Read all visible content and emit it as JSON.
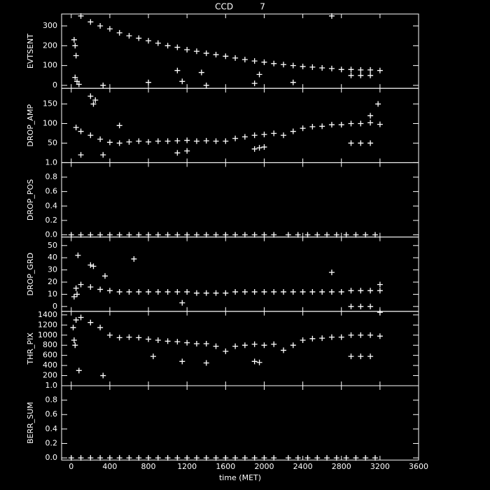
{
  "chart_data": [
    {
      "type": "scatter",
      "title": "CCD          7",
      "y_label": "EVTSENT",
      "color": "#ffffff",
      "xlim": [
        -100,
        3600
      ],
      "ylim": [
        -15,
        360
      ],
      "xticks": [
        0,
        400,
        800,
        1200,
        1600,
        2000,
        2400,
        2800,
        3200,
        3600
      ],
      "yticks": [
        0,
        100,
        200,
        300
      ],
      "x": [
        100,
        200,
        300,
        400,
        500,
        600,
        700,
        800,
        900,
        1000,
        1100,
        1200,
        1300,
        1400,
        1500,
        1600,
        1700,
        1800,
        1900,
        2000,
        2100,
        2200,
        2300,
        2400,
        2500,
        2600,
        2700,
        2800,
        2900,
        3000,
        3100,
        3200,
        30,
        40,
        50,
        40,
        60,
        80,
        330,
        800,
        1100,
        1150,
        1350,
        1400,
        1900,
        1950,
        2300,
        2700,
        2900,
        3000,
        3100
      ],
      "values": [
        350,
        320,
        300,
        285,
        265,
        250,
        238,
        225,
        213,
        200,
        192,
        180,
        172,
        162,
        155,
        147,
        138,
        130,
        123,
        117,
        110,
        105,
        100,
        95,
        92,
        88,
        85,
        80,
        80,
        78,
        78,
        75,
        230,
        200,
        150,
        40,
        20,
        5,
        0,
        15,
        75,
        20,
        65,
        0,
        10,
        55,
        15,
        350,
        50,
        50,
        50
      ]
    },
    {
      "type": "scatter",
      "y_label": "DROP_AMP",
      "color": "#ffffff",
      "xlim": [
        -100,
        3600
      ],
      "ylim": [
        0,
        190
      ],
      "xticks": [
        0,
        400,
        800,
        1200,
        1600,
        2000,
        2400,
        2800,
        3200,
        3600
      ],
      "yticks": [
        50,
        100,
        150
      ],
      "x": [
        50,
        100,
        200,
        300,
        400,
        500,
        600,
        700,
        800,
        900,
        1000,
        1100,
        1200,
        1300,
        1400,
        1500,
        1600,
        1700,
        1800,
        1900,
        2000,
        2100,
        2200,
        2300,
        2400,
        2500,
        2600,
        2700,
        2800,
        2900,
        3000,
        3100,
        3200,
        200,
        230,
        250,
        100,
        330,
        500,
        1100,
        1200,
        1900,
        1950,
        2000,
        2900,
        3000,
        3100,
        3180,
        3100
      ],
      "values": [
        90,
        80,
        70,
        60,
        52,
        50,
        53,
        55,
        53,
        55,
        55,
        56,
        57,
        55,
        56,
        55,
        55,
        62,
        66,
        70,
        72,
        75,
        70,
        80,
        88,
        92,
        93,
        97,
        97,
        100,
        100,
        102,
        98,
        170,
        150,
        160,
        20,
        20,
        95,
        25,
        30,
        35,
        38,
        40,
        50,
        50,
        50,
        150,
        120
      ]
    },
    {
      "type": "scatter",
      "y_label": "DROP_POS",
      "color": "#ffffff",
      "xlim": [
        -100,
        3600
      ],
      "ylim": [
        -0.03,
        1.0
      ],
      "xticks": [
        0,
        400,
        800,
        1200,
        1600,
        2000,
        2400,
        2800,
        3200,
        3600
      ],
      "yticks": [
        {
          "value": 0,
          "label": "0.0"
        },
        {
          "value": 0.2,
          "label": "0.2"
        },
        {
          "value": 0.4,
          "label": "0.4"
        },
        {
          "value": 0.6,
          "label": "0.6"
        },
        {
          "value": 0.8,
          "label": "0.8"
        },
        {
          "value": 1,
          "label": "1.0"
        }
      ],
      "x": [
        0,
        100,
        200,
        300,
        400,
        500,
        600,
        700,
        800,
        900,
        1000,
        1100,
        1200,
        1300,
        1400,
        1500,
        1600,
        1700,
        1800,
        1900,
        2000,
        2100,
        2250,
        2350,
        2450,
        2550,
        2650,
        2750,
        2850,
        2950,
        3050,
        3150
      ],
      "values": [
        0,
        0,
        0,
        0,
        0,
        0,
        0,
        0,
        0,
        0,
        0,
        0,
        0,
        0,
        0,
        0,
        0,
        0,
        0,
        0,
        0,
        0,
        0,
        0,
        0,
        0,
        0,
        0,
        0,
        0,
        0,
        0
      ]
    },
    {
      "type": "scatter",
      "y_label": "DROP_GRD",
      "color": "#ffffff",
      "xlim": [
        -100,
        3600
      ],
      "ylim": [
        -4,
        57
      ],
      "xticks": [
        0,
        400,
        800,
        1200,
        1600,
        2000,
        2400,
        2800,
        3200,
        3600
      ],
      "yticks": [
        0,
        10,
        20,
        30,
        40,
        50
      ],
      "x": [
        50,
        100,
        200,
        300,
        400,
        500,
        600,
        700,
        800,
        900,
        1000,
        1100,
        1200,
        1300,
        1400,
        1500,
        1600,
        1700,
        1800,
        1900,
        2000,
        2100,
        2200,
        2300,
        2400,
        2500,
        2600,
        2700,
        2800,
        2900,
        3000,
        3100,
        3200,
        70,
        200,
        230,
        350,
        650,
        1150,
        2700,
        2900,
        3000,
        3100,
        3200,
        30,
        60
      ],
      "values": [
        15,
        18,
        16,
        14,
        13,
        12,
        12,
        12,
        12,
        12,
        12,
        12,
        12,
        11,
        11,
        11,
        11,
        12,
        12,
        12,
        12,
        12,
        12,
        12,
        12,
        12,
        12,
        12,
        12,
        13,
        13,
        13,
        13,
        42,
        34,
        33,
        25,
        39,
        3,
        28,
        0,
        0,
        0,
        18,
        8,
        10
      ]
    },
    {
      "type": "scatter",
      "y_label": "THR_PIX",
      "color": "#ffffff",
      "xlim": [
        -100,
        3600
      ],
      "ylim": [
        0,
        1470
      ],
      "xticks": [
        0,
        400,
        800,
        1200,
        1600,
        2000,
        2400,
        2800,
        3200,
        3600
      ],
      "yticks": [
        200,
        400,
        600,
        800,
        1000,
        1200,
        1400
      ],
      "x": [
        50,
        100,
        200,
        300,
        400,
        500,
        600,
        700,
        800,
        900,
        1000,
        1100,
        1200,
        1300,
        1400,
        1500,
        1600,
        1700,
        1800,
        1900,
        2000,
        2100,
        2200,
        2300,
        2400,
        2500,
        2600,
        2700,
        2800,
        2900,
        3000,
        3100,
        3200,
        20,
        30,
        40,
        80,
        330,
        850,
        1150,
        1400,
        1900,
        1950,
        2900,
        3000,
        3100,
        3200
      ],
      "values": [
        1300,
        1350,
        1250,
        1150,
        1000,
        950,
        960,
        950,
        920,
        900,
        880,
        870,
        850,
        830,
        830,
        780,
        680,
        780,
        800,
        820,
        800,
        820,
        700,
        800,
        900,
        930,
        940,
        960,
        960,
        1000,
        1000,
        1000,
        980,
        1150,
        900,
        800,
        300,
        200,
        580,
        480,
        450,
        480,
        460,
        580,
        580,
        580,
        1450
      ]
    },
    {
      "type": "scatter",
      "y_label": "BERR_SUM",
      "x_label": "time (MET)",
      "color": "#ffffff",
      "xlim": [
        -100,
        3600
      ],
      "ylim": [
        -0.03,
        1.0
      ],
      "xticks": [
        0,
        400,
        800,
        1200,
        1600,
        2000,
        2400,
        2800,
        3200,
        3600
      ],
      "yticks": [
        {
          "value": 0,
          "label": "0.0"
        },
        {
          "value": 0.2,
          "label": "0.2"
        },
        {
          "value": 0.4,
          "label": "0.4"
        },
        {
          "value": 0.6,
          "label": "0.6"
        },
        {
          "value": 0.8,
          "label": "0.8"
        },
        {
          "value": 1,
          "label": "1.0"
        }
      ],
      "x": [
        0,
        100,
        200,
        300,
        400,
        500,
        600,
        700,
        800,
        900,
        1000,
        1100,
        1200,
        1300,
        1400,
        1500,
        1600,
        1700,
        1800,
        1900,
        2000,
        2100,
        2250,
        2350,
        2450,
        2550,
        2650,
        2750,
        2850,
        2950,
        3050,
        3150
      ],
      "values": [
        0,
        0,
        0,
        0,
        0,
        0,
        0,
        0,
        0,
        0,
        0,
        0,
        0,
        0,
        0,
        0,
        0,
        0,
        0,
        0,
        0,
        0,
        0,
        0,
        0,
        0,
        0,
        0,
        0,
        0,
        0,
        0
      ]
    }
  ]
}
